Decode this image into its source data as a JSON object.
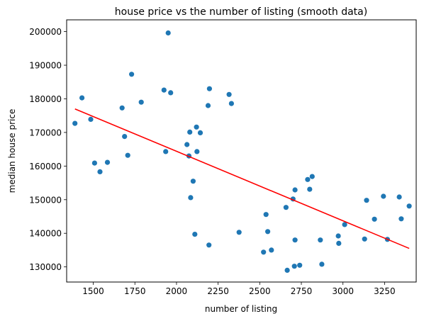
{
  "chart_data": {
    "type": "scatter",
    "title": "house price vs the number of listing (smooth data)",
    "xlabel": "number of listing",
    "ylabel": "median house price",
    "xlim": [
      1340,
      3440
    ],
    "ylim": [
      125500,
      203500
    ],
    "xticks": [
      1500,
      1750,
      2000,
      2250,
      2500,
      2750,
      3000,
      3250
    ],
    "xtick_labels": [
      "1500",
      "1750",
      "2000",
      "2250",
      "2500",
      "2750",
      "3000",
      "3250"
    ],
    "yticks": [
      130000,
      140000,
      150000,
      160000,
      170000,
      180000,
      190000,
      200000
    ],
    "ytick_labels": [
      "130000",
      "140000",
      "150000",
      "160000",
      "170000",
      "180000",
      "190000",
      "200000"
    ],
    "grid": false,
    "points": [
      [
        1390,
        172700
      ],
      [
        1432,
        180300
      ],
      [
        1485,
        173900
      ],
      [
        1508,
        160900
      ],
      [
        1540,
        158300
      ],
      [
        1585,
        161100
      ],
      [
        1673,
        177300
      ],
      [
        1688,
        168800
      ],
      [
        1707,
        163200
      ],
      [
        1730,
        187300
      ],
      [
        1788,
        179000
      ],
      [
        1925,
        182600
      ],
      [
        1935,
        164300
      ],
      [
        1950,
        199600
      ],
      [
        1965,
        181800
      ],
      [
        2063,
        166400
      ],
      [
        2075,
        163000
      ],
      [
        2080,
        170100
      ],
      [
        2085,
        150600
      ],
      [
        2100,
        155500
      ],
      [
        2110,
        139700
      ],
      [
        2120,
        171600
      ],
      [
        2123,
        164300
      ],
      [
        2143,
        169900
      ],
      [
        2190,
        178000
      ],
      [
        2198,
        183000
      ],
      [
        2195,
        136500
      ],
      [
        2316,
        181300
      ],
      [
        2330,
        178600
      ],
      [
        2376,
        140300
      ],
      [
        2523,
        134400
      ],
      [
        2538,
        145600
      ],
      [
        2548,
        140500
      ],
      [
        2570,
        135000
      ],
      [
        2658,
        147700
      ],
      [
        2665,
        129000
      ],
      [
        2700,
        150200
      ],
      [
        2708,
        130200
      ],
      [
        2712,
        152900
      ],
      [
        2712,
        138000
      ],
      [
        2740,
        130500
      ],
      [
        2788,
        156000
      ],
      [
        2800,
        153100
      ],
      [
        2815,
        156900
      ],
      [
        2864,
        138000
      ],
      [
        2873,
        130800
      ],
      [
        2972,
        139200
      ],
      [
        2975,
        137000
      ],
      [
        3010,
        142600
      ],
      [
        3130,
        138300
      ],
      [
        3142,
        149800
      ],
      [
        3189,
        144200
      ],
      [
        3243,
        151000
      ],
      [
        3267,
        138200
      ],
      [
        3338,
        150800
      ],
      [
        3350,
        144300
      ],
      [
        3398,
        148100
      ]
    ],
    "series": [
      {
        "name": "",
        "type": "scatter",
        "color": "#1f77b4"
      },
      {
        "name": "",
        "type": "line",
        "color": "#ff0000",
        "x": [
          1390,
          3398
        ],
        "y": [
          177000,
          135500
        ]
      }
    ]
  }
}
